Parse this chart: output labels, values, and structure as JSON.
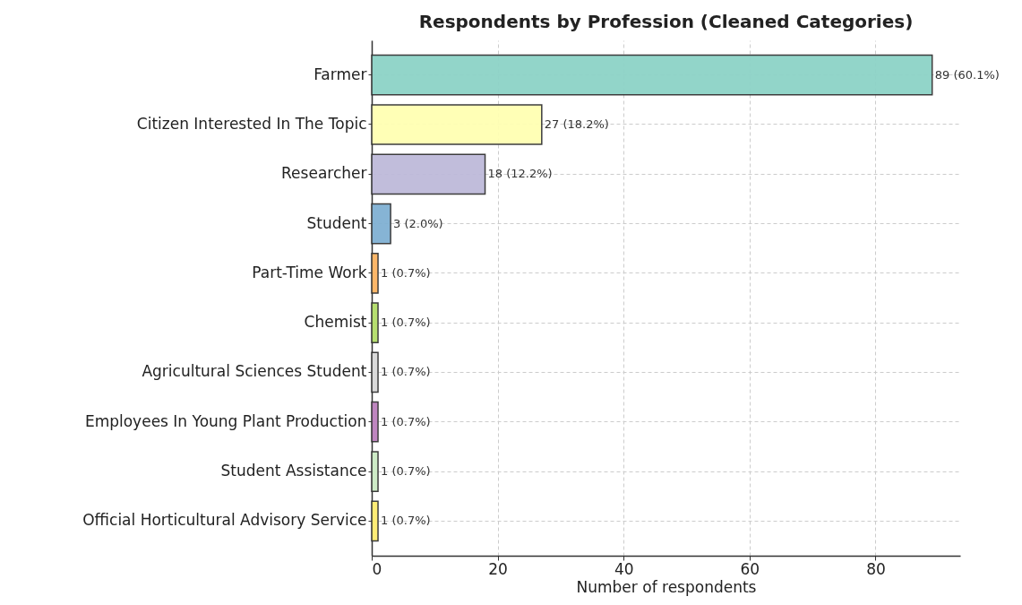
{
  "chart_data": {
    "type": "bar",
    "orientation": "horizontal",
    "title": "Respondents by Profession (Cleaned Categories)",
    "xlabel": "Number of respondents",
    "categories": [
      "Farmer",
      "Citizen Interested In The Topic",
      "Researcher",
      "Student",
      "Part-Time Work",
      "Chemist",
      "Agricultural Sciences Student",
      "Employees In Young Plant Production",
      "Student Assistance",
      "Official Horticultural Advisory Service"
    ],
    "values": [
      89,
      27,
      18,
      3,
      1,
      1,
      1,
      1,
      1,
      1
    ],
    "colors": [
      "#8dd3c7",
      "#ffffb3",
      "#bebada",
      "#80b1d3",
      "#fdb462",
      "#b3de69",
      "#d9d9d9",
      "#bc80bd",
      "#ccebc5",
      "#ffed6f"
    ],
    "value_labels": [
      "89 (60.1%)",
      "27 (18.2%)",
      "18 (12.2%)",
      "3 (2.0%)",
      "1 (0.7%)",
      "1 (0.7%)",
      "1 (0.7%)",
      "1 (0.7%)",
      "1 (0.7%)",
      "1 (0.7%)"
    ],
    "xlim": [
      0,
      93.45
    ],
    "xticks": [
      0,
      20,
      40,
      60,
      80
    ],
    "grid": true
  }
}
